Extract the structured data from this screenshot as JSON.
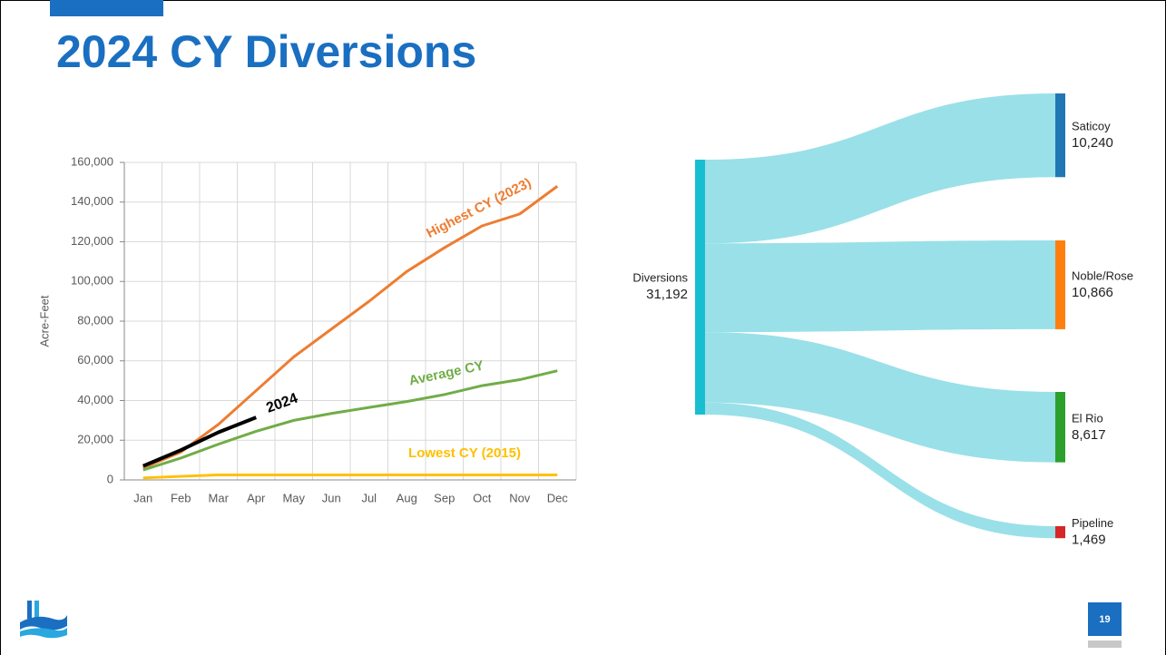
{
  "slide": {
    "title": "2024 CY Diversions",
    "page_number": "19"
  },
  "chart_data": [
    {
      "type": "line",
      "y_label": "Acre-Feet",
      "categories": [
        "Jan",
        "Feb",
        "Mar",
        "Apr",
        "May",
        "Jun",
        "Jul",
        "Aug",
        "Sep",
        "Oct",
        "Nov",
        "Dec"
      ],
      "ylim": [
        0,
        160000
      ],
      "yticks": [
        0,
        {
          "value": 20000,
          "label": "20,000"
        },
        {
          "value": 40000,
          "label": "40,000"
        },
        {
          "value": 60000,
          "label": "60,000"
        },
        {
          "value": 80000,
          "label": "80,000"
        },
        {
          "value": 100000,
          "label": "100,000"
        },
        {
          "value": 120000,
          "label": "120,000"
        },
        {
          "value": 140000,
          "label": "140,000"
        },
        {
          "value": 160000,
          "label": "160,000"
        }
      ],
      "grid": true,
      "series": [
        {
          "name": "Highest CY (2023)",
          "color": "#ed7d31",
          "values": [
            6000,
            14000,
            28000,
            45000,
            62000,
            76000,
            90000,
            105000,
            117000,
            128000,
            134000,
            148000
          ]
        },
        {
          "name": "Average CY",
          "color": "#70ad47",
          "values": [
            5000,
            11000,
            18000,
            24500,
            30000,
            33500,
            36500,
            39500,
            43000,
            47500,
            50500,
            55000
          ]
        },
        {
          "name": "Lowest CY (2015)",
          "color": "#ffc000",
          "values": [
            1000,
            1800,
            2500,
            2500,
            2500,
            2500,
            2500,
            2500,
            2500,
            2500,
            2500,
            2500
          ]
        },
        {
          "name": "2024",
          "color": "#000000",
          "values": [
            7000,
            15000,
            24000,
            31500,
            null,
            null,
            null,
            null,
            null,
            null,
            null,
            null
          ]
        }
      ]
    },
    {
      "type": "sankey",
      "source": {
        "name": "Diversions",
        "value": 31192,
        "value_label": "31,192",
        "color": "#17becf"
      },
      "targets": [
        {
          "name": "Saticoy",
          "value": 10240,
          "value_label": "10,240",
          "color": "#1f77b4"
        },
        {
          "name": "Noble/Rose",
          "value": 10866,
          "value_label": "10,866",
          "color": "#ff7f0e"
        },
        {
          "name": "El Rio",
          "value": 8617,
          "value_label": "8,617",
          "color": "#2ca02c"
        },
        {
          "name": "Pipeline",
          "value": 1469,
          "value_label": "1,469",
          "color": "#d62728"
        }
      ],
      "link_color": "#9ae0e8"
    }
  ]
}
